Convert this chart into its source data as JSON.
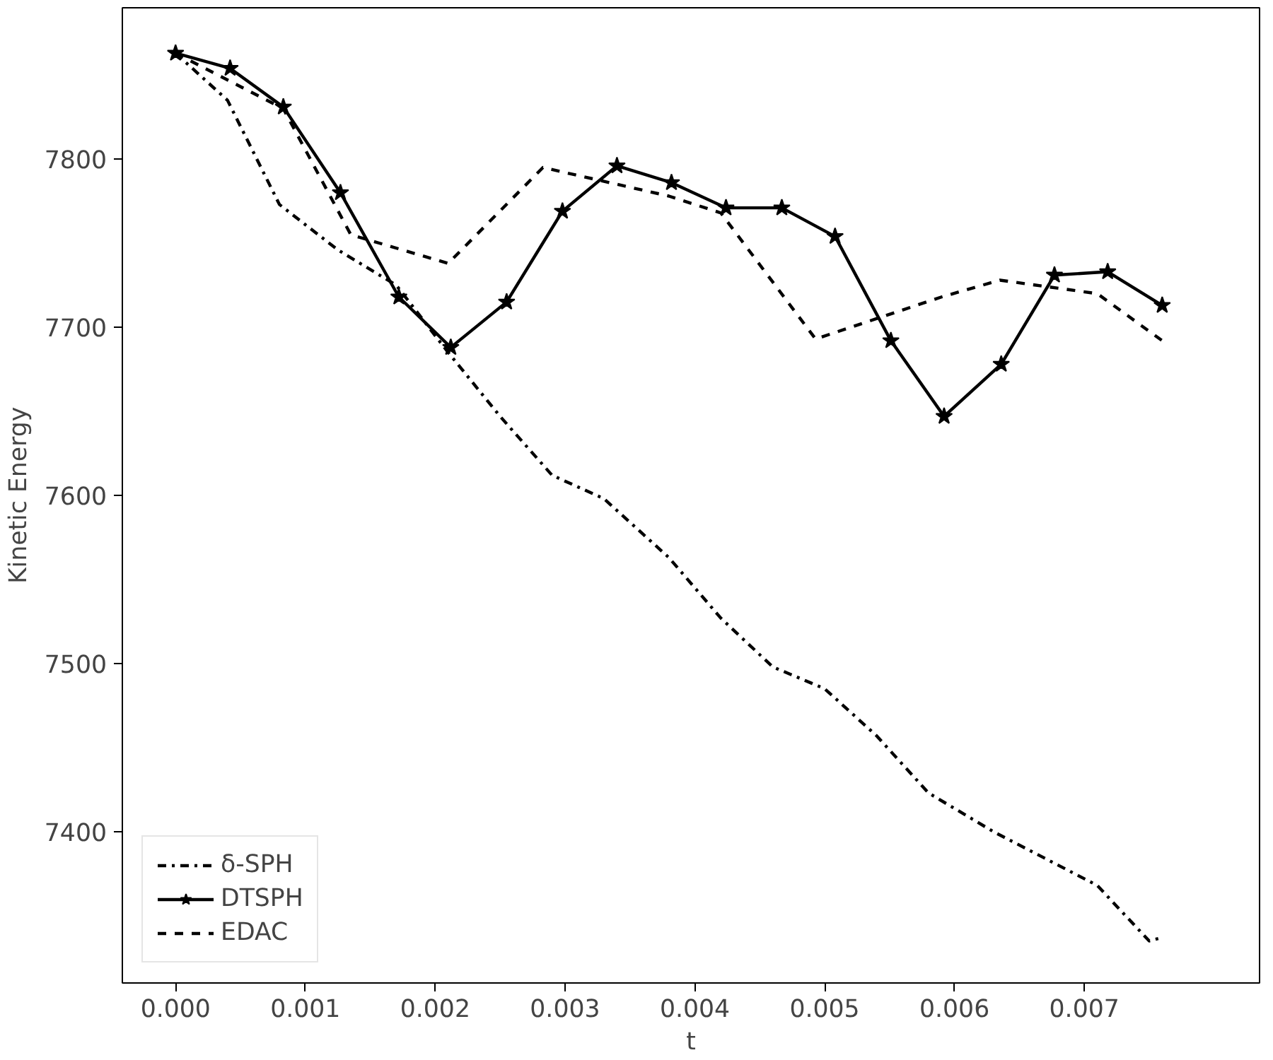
{
  "chart_data": {
    "type": "line",
    "xlabel": "t",
    "ylabel": "Kinetic Energy",
    "xlim": [
      -0.00041,
      0.00835
    ],
    "ylim": [
      7310,
      7890
    ],
    "xticks": [
      {
        "value": 0,
        "label": "0.000"
      },
      {
        "value": 0.001,
        "label": "0.001"
      },
      {
        "value": 0.002,
        "label": "0.002"
      },
      {
        "value": 0.003,
        "label": "0.003"
      },
      {
        "value": 0.004,
        "label": "0.004"
      },
      {
        "value": 0.005,
        "label": "0.005"
      },
      {
        "value": 0.006,
        "label": "0.006"
      },
      {
        "value": 0.007,
        "label": "0.007"
      }
    ],
    "yticks": [
      7400,
      7500,
      7600,
      7700,
      7800
    ],
    "legend": "bottom left",
    "grid": false,
    "series": [
      {
        "name": "δ-SPH",
        "color": "#000000",
        "line_style": "dashdot",
        "marker": "none",
        "x": [
          0,
          0.0004,
          0.0008,
          0.00125,
          0.0017,
          0.0021,
          0.0025,
          0.0029,
          0.0033,
          0.0038,
          0.0042,
          0.0046,
          0.005,
          0.0054,
          0.0058,
          0.0063,
          0.0071,
          0.0075,
          0.0076
        ],
        "values": [
          7863,
          7835,
          7773,
          7746,
          7725,
          7685,
          7647,
          7612,
          7598,
          7563,
          7527,
          7498,
          7485,
          7457,
          7423,
          7400,
          7368,
          7335,
          7337
        ]
      },
      {
        "name": "DTSPH",
        "color": "#000000",
        "line_style": "solid",
        "marker": "star",
        "x": [
          0,
          0.00042,
          0.00083,
          0.00127,
          0.00172,
          0.00212,
          0.00255,
          0.00298,
          0.0034,
          0.00382,
          0.00424,
          0.00467,
          0.00508,
          0.00551,
          0.00592,
          0.00636,
          0.00677,
          0.00718,
          0.0076
        ],
        "values": [
          7863,
          7854,
          7831,
          7780,
          7718,
          7688,
          7715,
          7769,
          7796,
          7786,
          7771,
          7771,
          7754,
          7692,
          7647,
          7678,
          7731,
          7733,
          7713
        ]
      },
      {
        "name": "EDAC",
        "color": "#000000",
        "line_style": "dashed",
        "marker": "none",
        "x": [
          0,
          0.00083,
          0.00135,
          0.0021,
          0.00283,
          0.0038,
          0.0042,
          0.00493,
          0.0059,
          0.00635,
          0.0071,
          0.0076
        ],
        "values": [
          7863,
          7830,
          7755,
          7738,
          7795,
          7778,
          7768,
          7693,
          7718,
          7728,
          7720,
          7692
        ]
      }
    ]
  }
}
